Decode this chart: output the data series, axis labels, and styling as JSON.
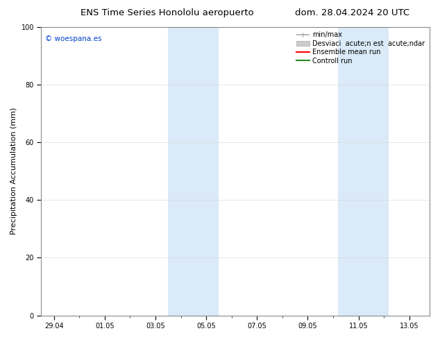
{
  "title_left": "ENS Time Series Honololu aeropuerto",
  "title_right": "dom. 28.04.2024 20 UTC",
  "ylabel": "Precipitation Accumulation (mm)",
  "ylim": [
    0,
    100
  ],
  "yticks": [
    0,
    20,
    40,
    60,
    80,
    100
  ],
  "xtick_labels": [
    "29.04",
    "01.05",
    "03.05",
    "05.05",
    "07.05",
    "09.05",
    "11.05",
    "13.05"
  ],
  "xtick_positions": [
    0,
    2,
    4,
    6,
    8,
    10,
    12,
    14
  ],
  "xlim": [
    -0.5,
    14.8
  ],
  "shade_bands": [
    {
      "x_start": 4.5,
      "x_end": 6.5
    },
    {
      "x_start": 11.2,
      "x_end": 13.2
    }
  ],
  "shade_color": "#daeaf8",
  "background_color": "#ffffff",
  "watermark": "© woespana.es",
  "watermark_color": "#0044cc",
  "legend_minmax_color": "#aaaaaa",
  "legend_std_color": "#cccccc",
  "legend_mean_color": "#ff0000",
  "legend_ctrl_color": "#228b22",
  "title_fontsize": 9.5,
  "ylabel_fontsize": 8,
  "tick_fontsize": 7,
  "legend_fontsize": 7
}
